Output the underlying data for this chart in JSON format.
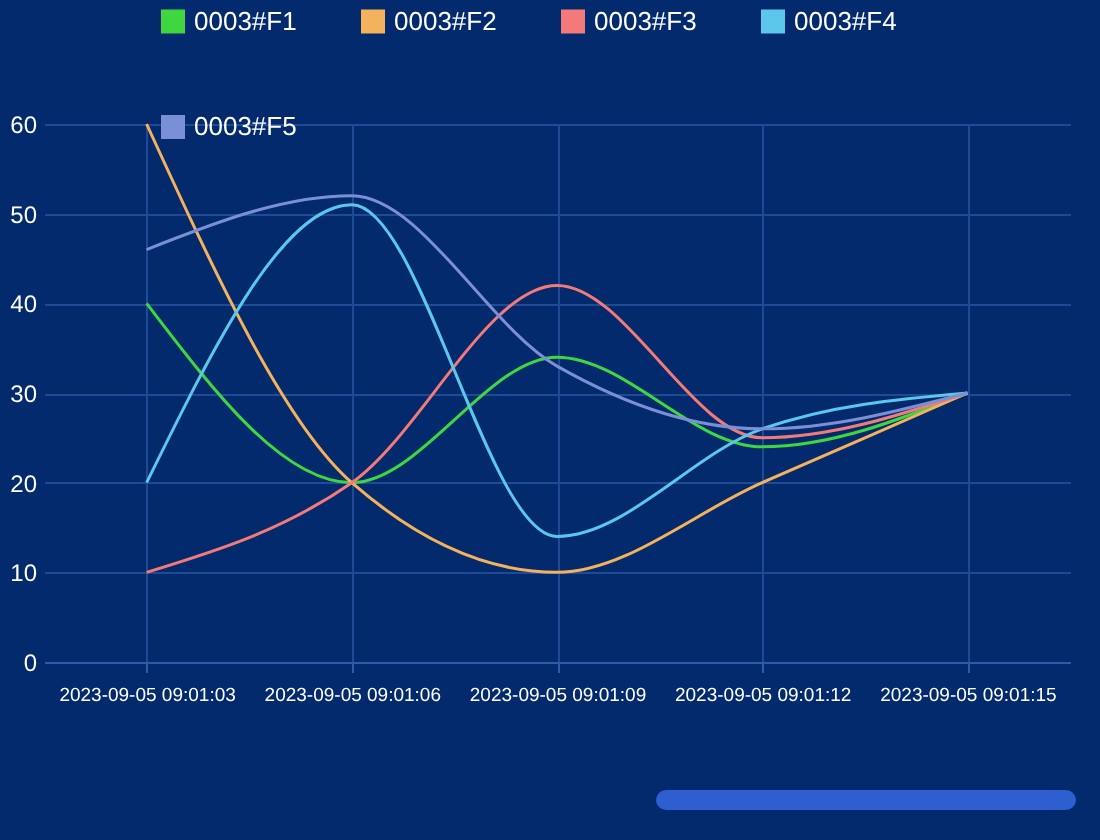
{
  "chart_data": {
    "type": "line",
    "categories": [
      "2023-09-05 09:01:03",
      "2023-09-05 09:01:06",
      "2023-09-05 09:01:09",
      "2023-09-05 09:01:12",
      "2023-09-05 09:01:15"
    ],
    "series": [
      {
        "name": "0003#F1",
        "color": "#3fd63f",
        "values": [
          40,
          20,
          34,
          24,
          30
        ]
      },
      {
        "name": "0003#F2",
        "color": "#f5b25c",
        "values": [
          60,
          20,
          10,
          20,
          30
        ]
      },
      {
        "name": "0003#F3",
        "color": "#f47a7a",
        "values": [
          10,
          20,
          42,
          25,
          30
        ]
      },
      {
        "name": "0003#F4",
        "color": "#5cc6eb",
        "values": [
          20,
          51,
          14,
          26,
          30
        ]
      },
      {
        "name": "0003#F5",
        "color": "#7b8fd6",
        "values": [
          46,
          52,
          33,
          26,
          30
        ]
      }
    ],
    "ylim": [
      0,
      60
    ],
    "yticks": [
      0,
      10,
      20,
      30,
      40,
      50,
      60
    ],
    "grid": true,
    "legend": "top",
    "marker": "none",
    "line_style": "solid"
  }
}
